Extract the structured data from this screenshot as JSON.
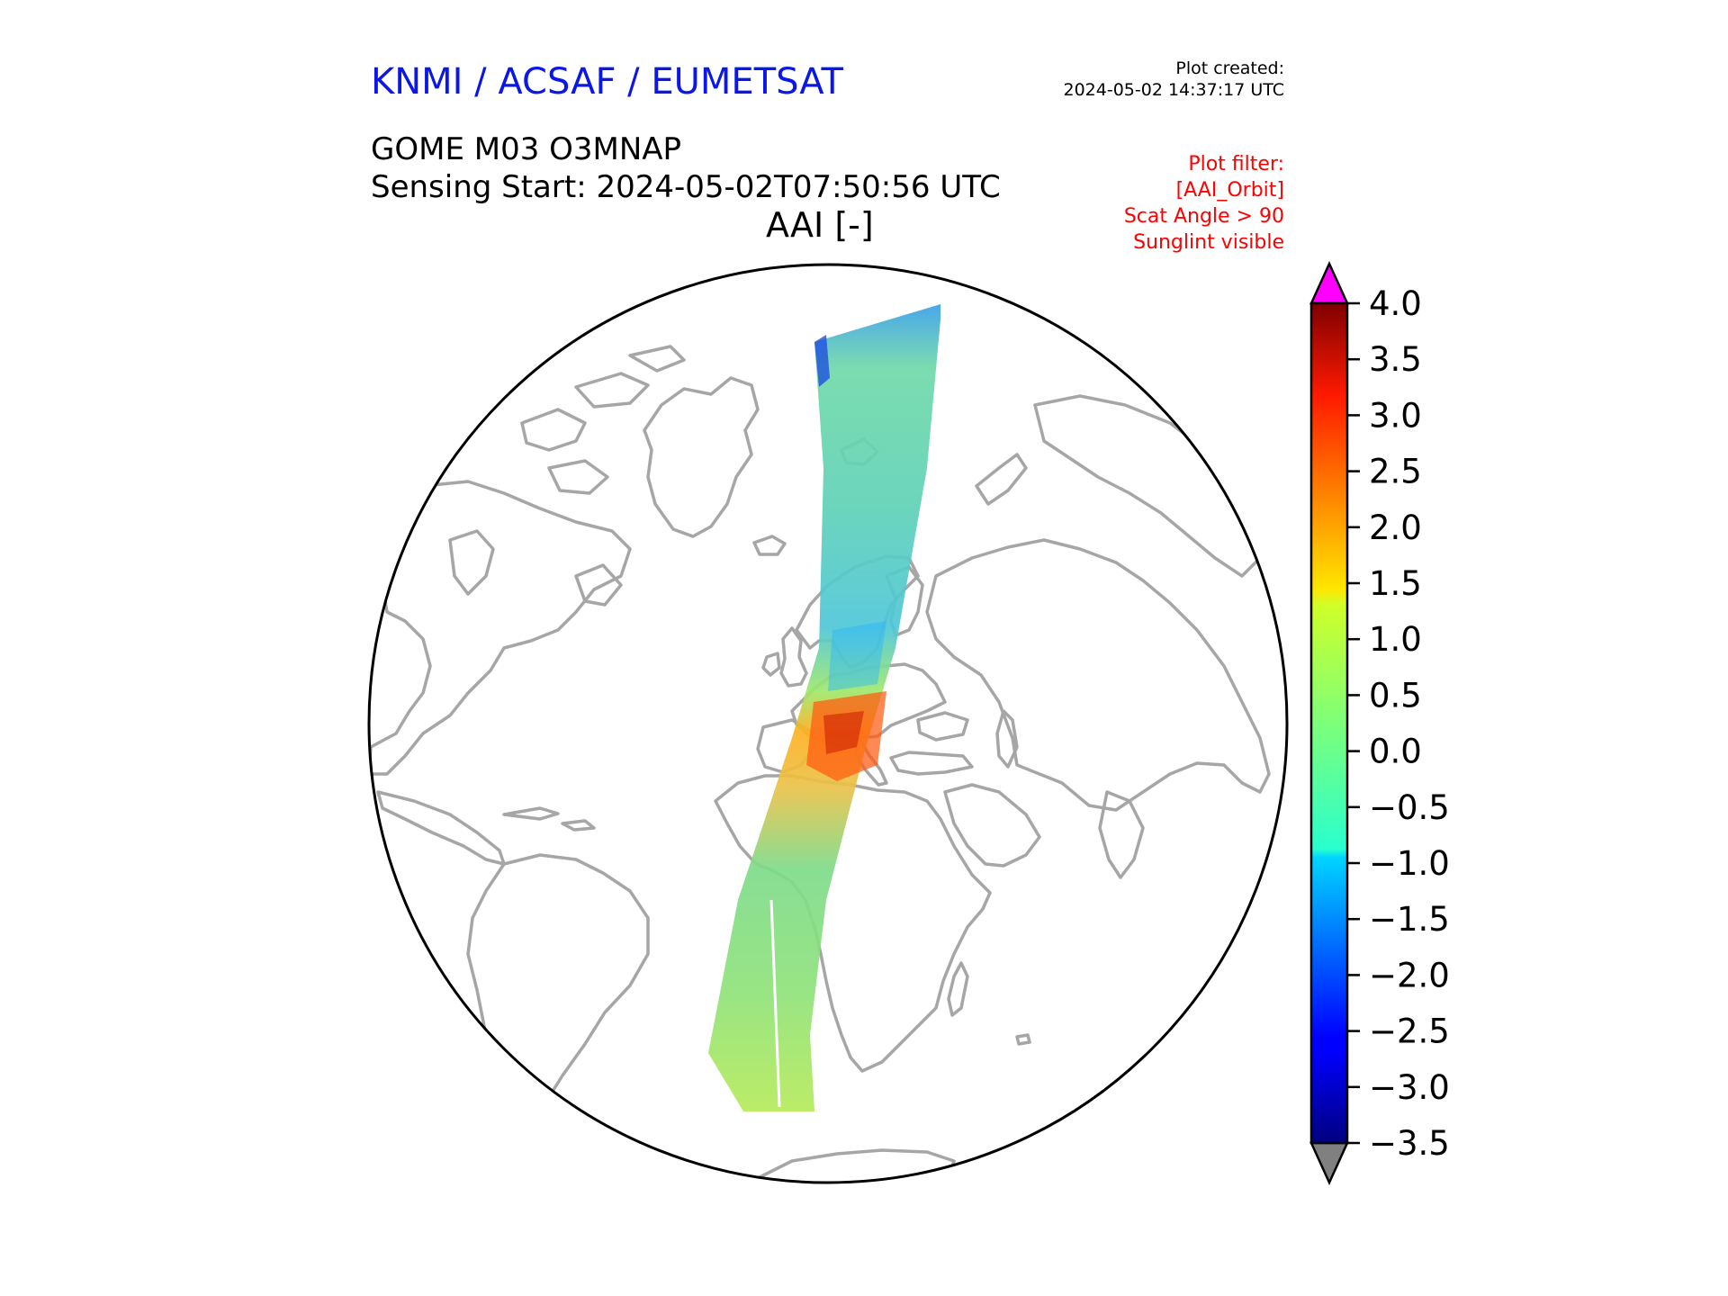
{
  "header": {
    "org": "KNMI / ACSAF / EUMETSAT",
    "created_label": "Plot created:",
    "created_time": "2024-05-02 14:37:17 UTC",
    "product": "GOME M03 O3MNAP",
    "sensing_start": "Sensing Start: 2024-05-02T07:50:56 UTC",
    "quantity": "AAI [-]"
  },
  "filter": {
    "label": "Plot filter:",
    "lines": [
      "[AAI_Orbit]",
      "Scat Angle > 90",
      "Sunglint visible"
    ]
  },
  "colorbar": {
    "min": -3.5,
    "max": 4.0,
    "ticks": [
      "4.0",
      "3.5",
      "3.0",
      "2.5",
      "2.0",
      "1.5",
      "1.0",
      "0.5",
      "0.0",
      "−0.5",
      "−1.0",
      "−1.5",
      "−2.0",
      "−2.5",
      "−3.0",
      "−3.5"
    ],
    "over_color": "#ff00ff",
    "under_color": "#808080"
  },
  "map": {
    "projection": "orthographic",
    "coast_color": "#a6a6a6",
    "swath_region": "Arctic - Europe - Sahara - Gulf of Guinea - South Atlantic"
  }
}
